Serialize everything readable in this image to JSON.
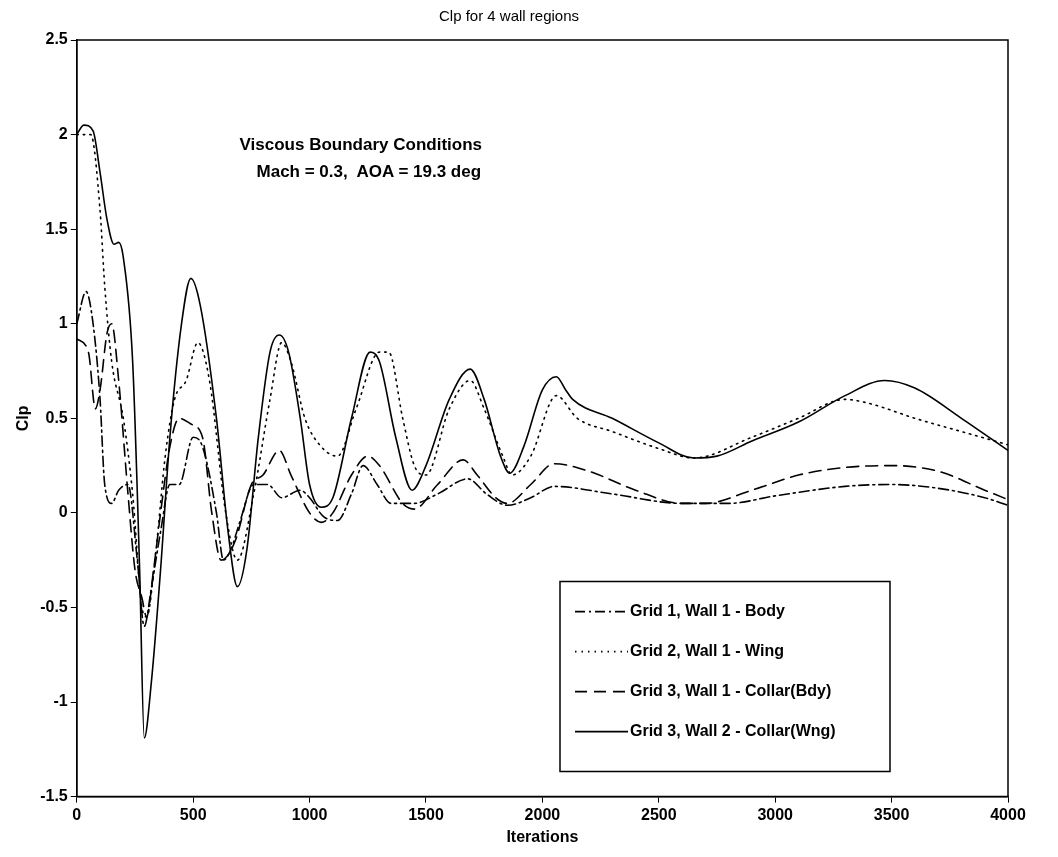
{
  "chart_data": {
    "type": "line",
    "title": "Clp for 4 wall regions",
    "xlabel": "Iterations",
    "ylabel": "Clp",
    "annotations": [
      "Viscous Boundary Conditions",
      "Mach = 0.3,  AOA = 19.3 deg"
    ],
    "xlim": [
      0,
      4000
    ],
    "xticks": [
      0,
      500,
      1000,
      1500,
      2000,
      2500,
      3000,
      3500,
      4000
    ],
    "ylim": [
      -1.5,
      2.5
    ],
    "yticks": [
      -1.5,
      -1,
      -0.5,
      0,
      0.5,
      1,
      1.5,
      2,
      2.5
    ],
    "grid": false,
    "legend": "bottom right",
    "marker": "none",
    "series": [
      {
        "name": "Grid 1, Wall 1 - Body",
        "color": "#000000",
        "line_style": "dashdot",
        "x": [
          0,
          40,
          70,
          100,
          120,
          150,
          180,
          220,
          260,
          290,
          320,
          360,
          400,
          440,
          500,
          540,
          600,
          630,
          660,
          700,
          760,
          820,
          880,
          960,
          1000,
          1060,
          1120,
          1180,
          1230,
          1290,
          1350,
          1450,
          1550,
          1680,
          1760,
          1850,
          1950,
          2050,
          2300,
          2600,
          2800,
          3000,
          3300,
          3500,
          3700,
          3900,
          4000
        ],
        "values": [
          1.0,
          1.17,
          1.0,
          0.6,
          0.15,
          0.05,
          0.12,
          0.15,
          -0.25,
          -0.6,
          -0.4,
          -0.1,
          0.15,
          0.15,
          0.4,
          0.35,
          0.0,
          -0.25,
          -0.2,
          -0.05,
          0.15,
          0.15,
          0.08,
          0.12,
          0.08,
          -0.02,
          -0.04,
          0.1,
          0.25,
          0.15,
          0.05,
          0.05,
          0.1,
          0.18,
          0.1,
          0.04,
          0.08,
          0.14,
          0.1,
          0.05,
          0.05,
          0.09,
          0.14,
          0.15,
          0.13,
          0.08,
          0.04
        ]
      },
      {
        "name": "Grid 2, Wall 1 - Wing",
        "color": "#000000",
        "line_style": "dotted",
        "x": [
          0,
          60,
          100,
          120,
          150,
          200,
          240,
          280,
          300,
          340,
          380,
          420,
          470,
          520,
          570,
          640,
          690,
          760,
          830,
          880,
          920,
          980,
          1050,
          1120,
          1200,
          1300,
          1340,
          1400,
          1450,
          1500,
          1600,
          1690,
          1750,
          1830,
          1870,
          1950,
          2060,
          2150,
          2300,
          2500,
          2650,
          2900,
          3100,
          3300,
          3400,
          3600,
          3800,
          4000
        ],
        "values": [
          2.0,
          2.0,
          1.6,
          1.2,
          0.8,
          0.5,
          0.1,
          -0.5,
          -0.55,
          -0.2,
          0.3,
          0.6,
          0.7,
          0.9,
          0.7,
          0.0,
          -0.25,
          0.1,
          0.6,
          0.9,
          0.8,
          0.5,
          0.35,
          0.3,
          0.55,
          0.85,
          0.85,
          0.5,
          0.25,
          0.2,
          0.55,
          0.7,
          0.55,
          0.3,
          0.2,
          0.3,
          0.62,
          0.5,
          0.43,
          0.34,
          0.29,
          0.4,
          0.5,
          0.6,
          0.58,
          0.5,
          0.43,
          0.36
        ]
      },
      {
        "name": "Grid 3, Wall 1 - Collar(Bdy)",
        "color": "#000000",
        "line_style": "dashed",
        "x": [
          0,
          50,
          80,
          100,
          130,
          150,
          180,
          220,
          250,
          280,
          300,
          330,
          360,
          400,
          440,
          490,
          540,
          580,
          620,
          680,
          750,
          800,
          870,
          920,
          1000,
          1050,
          1100,
          1180,
          1250,
          1300,
          1400,
          1450,
          1550,
          1660,
          1720,
          1800,
          1850,
          1950,
          2050,
          2200,
          2400,
          2600,
          2700,
          2900,
          3100,
          3300,
          3500,
          3700,
          3900,
          4000
        ],
        "values": [
          0.92,
          0.85,
          0.55,
          0.65,
          0.95,
          1.0,
          0.7,
          0.1,
          -0.3,
          -0.45,
          -0.55,
          -0.3,
          0.0,
          0.35,
          0.5,
          0.47,
          0.4,
          0.0,
          -0.25,
          -0.15,
          0.15,
          0.2,
          0.33,
          0.2,
          0.0,
          -0.05,
          0.0,
          0.2,
          0.3,
          0.25,
          0.05,
          0.02,
          0.15,
          0.28,
          0.2,
          0.08,
          0.05,
          0.15,
          0.26,
          0.22,
          0.12,
          0.05,
          0.05,
          0.12,
          0.2,
          0.24,
          0.25,
          0.22,
          0.12,
          0.07
        ]
      },
      {
        "name": "Grid 3, Wall 2 - Collar(Wng)",
        "color": "#000000",
        "line_style": "solid",
        "x": [
          0,
          30,
          70,
          100,
          130,
          160,
          180,
          200,
          240,
          270,
          290,
          320,
          360,
          400,
          450,
          490,
          530,
          600,
          650,
          690,
          730,
          780,
          830,
          870,
          910,
          960,
          1000,
          1050,
          1100,
          1180,
          1260,
          1300,
          1370,
          1440,
          1500,
          1600,
          1690,
          1750,
          1820,
          1860,
          1920,
          2000,
          2060,
          2100,
          2130,
          2300,
          2500,
          2650,
          2750,
          2900,
          3100,
          3300,
          3470,
          3600,
          3800,
          4000
        ],
        "values": [
          2.0,
          2.05,
          2.02,
          1.8,
          1.55,
          1.42,
          1.43,
          1.35,
          0.8,
          -0.3,
          -1.19,
          -0.9,
          -0.3,
          0.4,
          1.0,
          1.24,
          1.1,
          0.5,
          -0.1,
          -0.39,
          -0.2,
          0.4,
          0.85,
          0.94,
          0.85,
          0.5,
          0.15,
          0.03,
          0.08,
          0.5,
          0.85,
          0.8,
          0.4,
          0.12,
          0.25,
          0.6,
          0.76,
          0.6,
          0.3,
          0.21,
          0.35,
          0.65,
          0.72,
          0.65,
          0.6,
          0.5,
          0.37,
          0.29,
          0.3,
          0.38,
          0.48,
          0.62,
          0.7,
          0.66,
          0.5,
          0.33
        ]
      }
    ]
  }
}
